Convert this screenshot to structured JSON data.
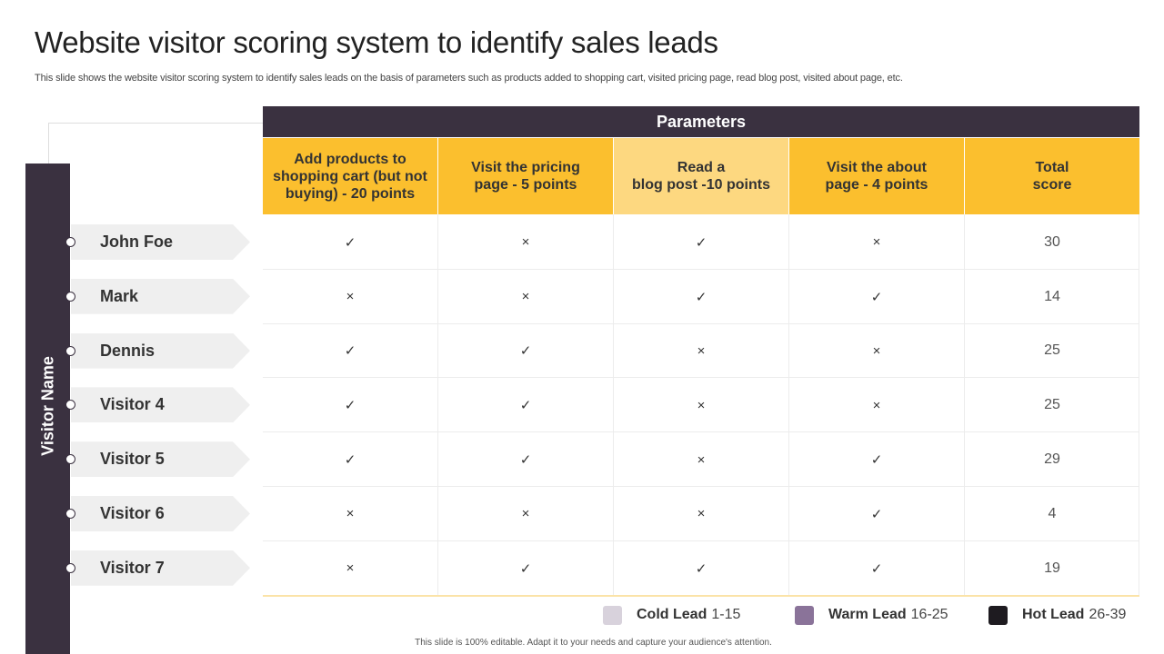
{
  "title": "Website visitor scoring system to identify sales leads",
  "subtitle": "This slide shows the website visitor scoring system to identify sales leads on the basis of parameters such as products added to shopping cart, visited pricing page, read blog post, visited about page, etc.",
  "sidebar_label": "Visitor Name",
  "parameters_label": "Parameters",
  "columns": [
    {
      "label": "Add products to\nshopping cart (but not\nbuying) - 20 points",
      "color": "#fbbf2e"
    },
    {
      "label": "Visit the pricing\npage - 5 points",
      "color": "#fbbf2e"
    },
    {
      "label": "Read a\nblog post  -10 points",
      "color": "#fdd880"
    },
    {
      "label": "Visit the about\npage - 4 points",
      "color": "#fbbf2e"
    },
    {
      "label": "Total\nscore",
      "color": "#fbbf2e"
    }
  ],
  "rows": [
    {
      "name": "John Foe",
      "marks": [
        "✓",
        "×",
        "✓",
        "×"
      ],
      "score": "30"
    },
    {
      "name": "Mark",
      "marks": [
        "×",
        "×",
        "✓",
        "✓"
      ],
      "score": "14"
    },
    {
      "name": "Dennis",
      "marks": [
        "✓",
        "✓",
        "×",
        "×"
      ],
      "score": "25"
    },
    {
      "name": "Visitor 4",
      "marks": [
        "✓",
        "✓",
        "×",
        "×"
      ],
      "score": "25"
    },
    {
      "name": "Visitor 5",
      "marks": [
        "✓",
        "✓",
        "×",
        "✓"
      ],
      "score": "29"
    },
    {
      "name": "Visitor 6",
      "marks": [
        "×",
        "×",
        "×",
        "✓"
      ],
      "score": "4"
    },
    {
      "name": "Visitor 7",
      "marks": [
        "×",
        "✓",
        "✓",
        "✓"
      ],
      "score": "19"
    }
  ],
  "legend": [
    {
      "name": "Cold Lead",
      "range": "1-15",
      "color": "#d8d2dc"
    },
    {
      "name": "Warm Lead",
      "range": "16-25",
      "color": "#8a7399"
    },
    {
      "name": "Hot Lead",
      "range": "26-39",
      "color": "#1e1b20"
    }
  ],
  "footer": "This slide is 100% editable. Adapt it to your needs and capture your audience's attention."
}
